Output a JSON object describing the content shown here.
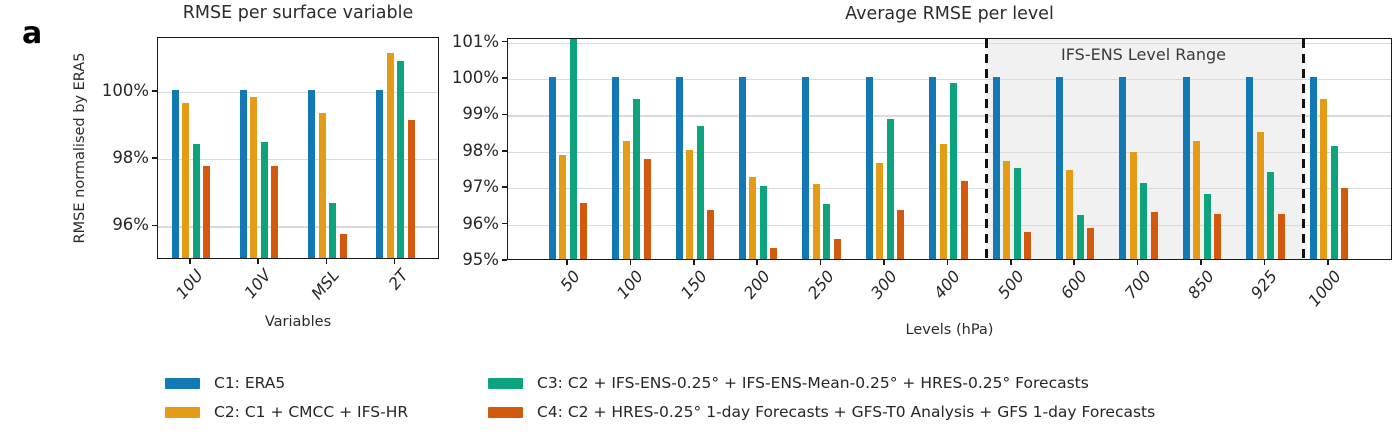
{
  "panel_label": "a",
  "accent_colors": {
    "c1_blue": "#1379b5",
    "c2_orange": "#e49b15",
    "c3_green": "#0da37c",
    "c4_red": "#d2590e"
  },
  "legend": {
    "items": [
      {
        "id": "C1",
        "label": "C1: ERA5",
        "color": "#1379b5"
      },
      {
        "id": "C2",
        "label": "C2: C1 + CMCC + IFS-HR",
        "color": "#e49b15"
      },
      {
        "id": "C3",
        "label": "C3: C2 + IFS-ENS-0.25° + IFS-ENS-Mean-0.25° + HRES-0.25° Forecasts",
        "color": "#0da37c"
      },
      {
        "id": "C4",
        "label": "C4: C2 + HRES-0.25° 1-day Forecasts + GFS-T0 Analysis + GFS 1-day Forecasts",
        "color": "#d2590e"
      }
    ]
  },
  "chart_data": [
    {
      "type": "bar",
      "title": "RMSE per surface variable",
      "xlabel": "Variables",
      "ylabel": "RMSE normalised by ERA5",
      "categories": [
        "10U",
        "10V",
        "MSL",
        "2T"
      ],
      "series": [
        {
          "name": "C1",
          "color": "#1379b5",
          "values": [
            100,
            100,
            100,
            100
          ]
        },
        {
          "name": "C2",
          "color": "#e49b15",
          "values": [
            99.6,
            99.8,
            99.3,
            101.1
          ]
        },
        {
          "name": "C3",
          "color": "#0da37c",
          "values": [
            98.4,
            98.45,
            96.65,
            100.85
          ]
        },
        {
          "name": "C4",
          "color": "#d2590e",
          "values": [
            97.75,
            97.75,
            95.7,
            99.1
          ]
        }
      ],
      "ylim": [
        95,
        101.6
      ],
      "yticks": [
        {
          "value": 100,
          "label": "100%"
        },
        {
          "value": 98,
          "label": "98%"
        },
        {
          "value": 96,
          "label": "96%"
        }
      ],
      "grid": true,
      "legend_position": "below-figure"
    },
    {
      "type": "bar",
      "title": "Average RMSE per level",
      "xlabel": "Levels (hPa)",
      "ylabel": "",
      "categories": [
        "50",
        "100",
        "150",
        "200",
        "250",
        "300",
        "400",
        "500",
        "600",
        "700",
        "850",
        "925",
        "1000"
      ],
      "series": [
        {
          "name": "C1",
          "color": "#1379b5",
          "values": [
            100,
            100,
            100,
            100,
            100,
            100,
            100,
            100,
            100,
            100,
            100,
            100,
            100
          ]
        },
        {
          "name": "C2",
          "color": "#e49b15",
          "values": [
            97.85,
            98.25,
            98.0,
            97.25,
            97.05,
            97.65,
            98.15,
            97.7,
            97.45,
            97.95,
            98.25,
            98.5,
            99.4
          ]
        },
        {
          "name": "C3",
          "color": "#0da37c",
          "values": [
            101.3,
            99.4,
            98.65,
            97.0,
            96.5,
            98.85,
            99.85,
            97.5,
            96.2,
            97.1,
            96.8,
            97.4,
            98.1
          ]
        },
        {
          "name": "C4",
          "color": "#d2590e",
          "values": [
            96.55,
            97.75,
            96.35,
            95.3,
            95.55,
            96.35,
            97.15,
            95.75,
            95.85,
            96.3,
            96.25,
            96.25,
            96.95
          ]
        }
      ],
      "ylim": [
        95,
        101.1
      ],
      "yticks": [
        {
          "value": 101,
          "label": "101%"
        },
        {
          "value": 100,
          "label": "100%"
        },
        {
          "value": 99,
          "label": "99%"
        },
        {
          "value": 98,
          "label": "98%"
        },
        {
          "value": 97,
          "label": "97%"
        },
        {
          "value": 96,
          "label": "96%"
        },
        {
          "value": 95,
          "label": "95%"
        }
      ],
      "grid": true,
      "annotation": {
        "label": "IFS-ENS Level Range",
        "span_levels": [
          "500",
          "925"
        ]
      }
    }
  ]
}
